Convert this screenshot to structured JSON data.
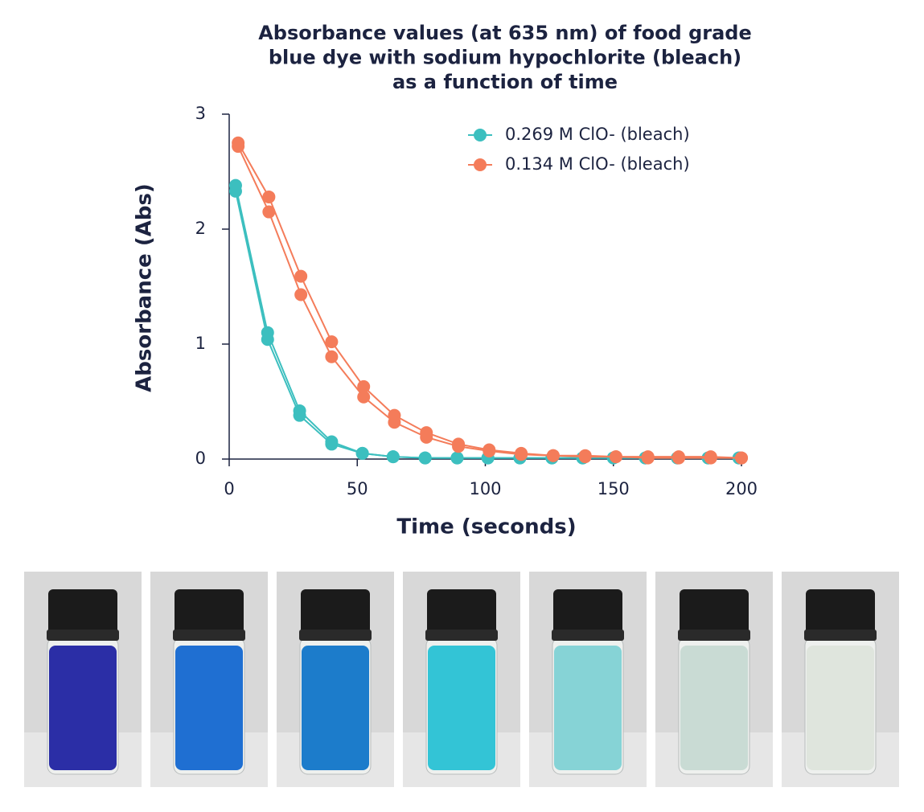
{
  "chart_data": {
    "type": "line",
    "title": "Absorbance values (at 635 nm) of food grade blue dye with sodium hypochlorite (bleach) as a function of time",
    "title_lines": [
      "Absorbance values (at 635 nm) of food grade",
      "blue dye with sodium hypochlorite (bleach)",
      "as a function of time"
    ],
    "x_label": "Time (seconds)",
    "y_label": "Absorbance (Abs)",
    "xlim": [
      0,
      200
    ],
    "xticks": [
      0,
      50,
      100,
      150,
      200
    ],
    "ylim": [
      0,
      3
    ],
    "yticks": [
      0,
      1,
      2,
      3
    ],
    "legend": "top-right",
    "series": [
      {
        "name": "0.269 M ClO- (bleach)",
        "color": "#3cbfbf",
        "x": [
          2.5,
          15,
          27.5,
          40,
          52,
          64,
          76.5,
          89,
          101,
          113.5,
          126,
          138,
          150,
          162.5,
          175,
          187,
          199
        ],
        "runs": [
          {
            "values": [
              2.38,
              1.1,
              0.42,
              0.15,
              0.05,
              0.02,
              0.01,
              0.01,
              0.01,
              0.01,
              0.01,
              0.01,
              0.01,
              0.01,
              0.01,
              0.01,
              0.01
            ]
          },
          {
            "values": [
              2.33,
              1.04,
              0.38,
              0.13,
              0.05,
              0.02,
              0.01,
              0.01,
              0.01,
              0.01,
              0.01,
              0.01,
              0.01,
              0.01,
              0.01,
              0.01,
              0.01
            ]
          }
        ]
      },
      {
        "name": "0.134 M ClO- (bleach)",
        "color": "#f47c5a",
        "x": [
          3.5,
          15.5,
          28,
          40,
          52.5,
          64.5,
          77,
          89.5,
          101.5,
          114,
          126.5,
          139,
          151,
          163.5,
          175.5,
          188,
          200
        ],
        "runs": [
          {
            "values": [
              2.75,
              2.28,
              1.59,
              1.02,
              0.63,
              0.38,
              0.23,
              0.13,
              0.08,
              0.05,
              0.03,
              0.03,
              0.02,
              0.02,
              0.02,
              0.02,
              0.01
            ]
          },
          {
            "values": [
              2.72,
              2.15,
              1.43,
              0.89,
              0.54,
              0.32,
              0.19,
              0.11,
              0.07,
              0.04,
              0.03,
              0.02,
              0.02,
              0.01,
              0.01,
              0.01,
              0.01
            ]
          }
        ]
      }
    ]
  }
}
